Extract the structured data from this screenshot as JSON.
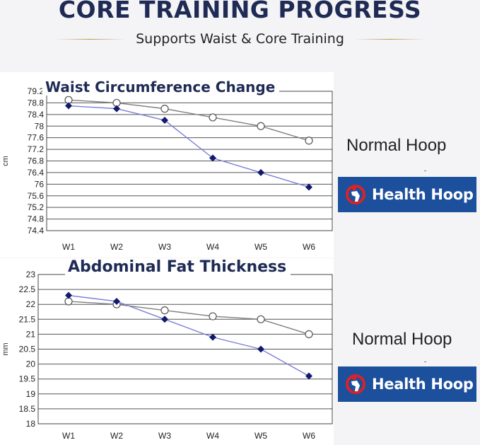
{
  "header": {
    "title": "CORE TRAINING PROGRESS",
    "subtitle": "Supports Waist & Core Training"
  },
  "legend": {
    "normal_label": "Normal Hoop",
    "brand_label": "Health Hoop",
    "normal_icon": "open-circle-marker",
    "brand_icon": "hoop-logo-icon",
    "brand_color": "#1c4f9c"
  },
  "colors": {
    "normal_line": "#808080",
    "brand_line": "#7b7fd6",
    "brand_marker": "#101a6e",
    "grid": "#555555"
  },
  "chart_data": [
    {
      "type": "line",
      "title": "Waist Circumference Change",
      "xlabel": "",
      "ylabel": "cm",
      "categories": [
        "W1",
        "W2",
        "W3",
        "W4",
        "W5",
        "W6"
      ],
      "yticks": [
        "79.2",
        "78.8",
        "78.4",
        "78",
        "77.6",
        "77.2",
        "76.8",
        "76.4",
        "76",
        "75.6",
        "75.2",
        "74.8",
        "74.4"
      ],
      "ylim": [
        74.4,
        79.2
      ],
      "grid": true,
      "series": [
        {
          "name": "Normal Hoop",
          "values": [
            78.9,
            78.8,
            78.6,
            78.3,
            78.0,
            77.5
          ]
        },
        {
          "name": "Health Hoop",
          "values": [
            78.7,
            78.6,
            78.2,
            76.9,
            76.4,
            75.9
          ]
        }
      ]
    },
    {
      "type": "line",
      "title": "Abdominal Fat Thickness",
      "xlabel": "",
      "ylabel": "mm",
      "categories": [
        "W1",
        "W2",
        "W3",
        "W4",
        "W5",
        "W6"
      ],
      "yticks": [
        "23",
        "22.5",
        "22",
        "21.5",
        "21",
        "20.5",
        "20",
        "19.5",
        "19",
        "18.5",
        "18"
      ],
      "ylim": [
        18,
        23
      ],
      "grid": true,
      "series": [
        {
          "name": "Normal Hoop",
          "values": [
            22.1,
            22.0,
            21.8,
            21.6,
            21.5,
            21.0
          ]
        },
        {
          "name": "Health Hoop",
          "values": [
            22.3,
            22.1,
            21.5,
            20.9,
            20.5,
            19.6
          ]
        }
      ]
    }
  ]
}
